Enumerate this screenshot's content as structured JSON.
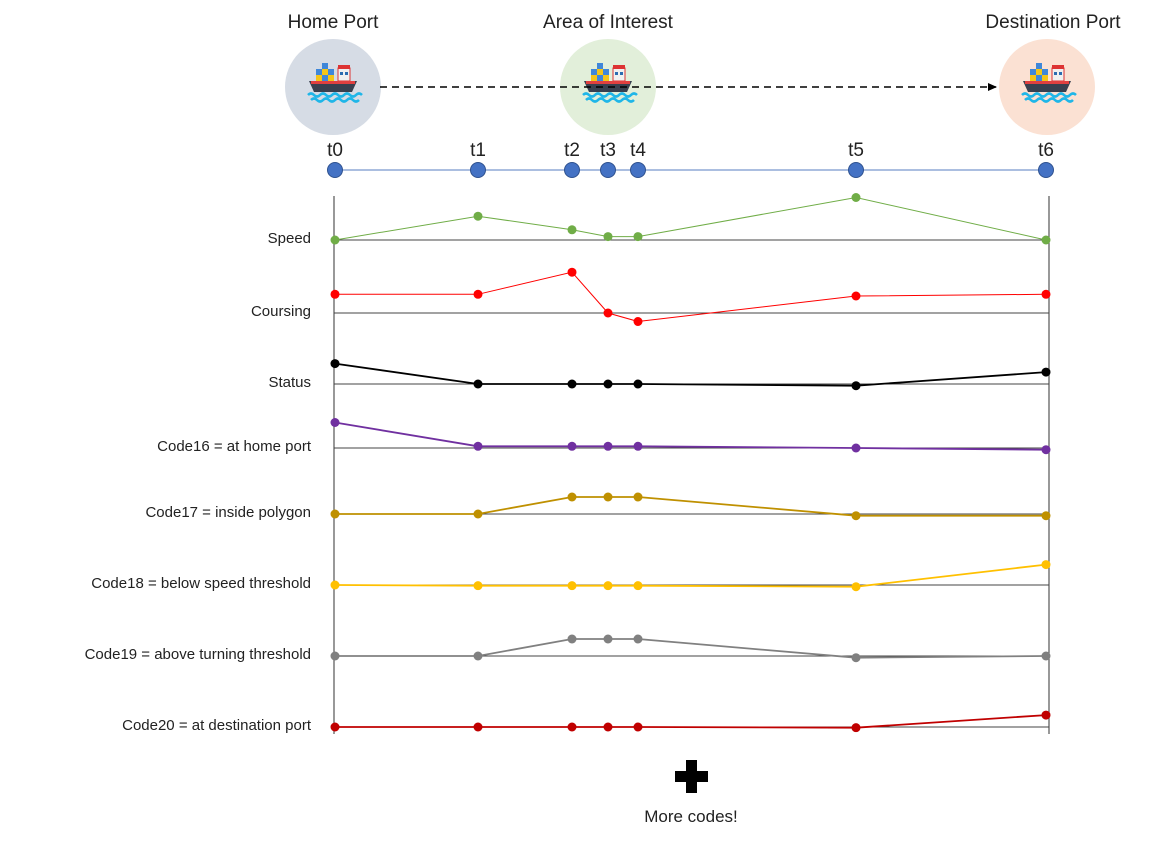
{
  "ports": [
    {
      "label": "Home Port",
      "color": "#d6dce5"
    },
    {
      "label": "Area of Interest",
      "color": "#e2efda"
    },
    {
      "label": "Destination Port",
      "color": "#fbe1d3"
    }
  ],
  "ship_icon": "cargo-ship-icon",
  "timeline": {
    "line_color": "#8fa9d6",
    "node_color": "#4472c4",
    "labels": [
      "t0",
      "t1",
      "t2",
      "t3",
      "t4",
      "t5",
      "t6"
    ]
  },
  "rows": [
    {
      "label": "Speed",
      "color": "#70ad47",
      "values": [
        0.0,
        0.7,
        0.3,
        0.1,
        0.1,
        1.25,
        0.0
      ]
    },
    {
      "label": "Coursing",
      "color": "#ff0000",
      "values": [
        0.55,
        0.55,
        1.2,
        0.0,
        -0.25,
        0.5,
        0.55
      ]
    },
    {
      "label": "Status",
      "color": "#000000",
      "values": [
        0.6,
        0.0,
        0.0,
        0.0,
        0.0,
        -0.05,
        0.35
      ]
    },
    {
      "label": "Code16 = at home port",
      "color": "#7030a0",
      "values": [
        0.75,
        0.05,
        0.05,
        0.05,
        0.05,
        0.0,
        -0.05
      ]
    },
    {
      "label": "Code17 = inside polygon",
      "color": "#bf9000",
      "values": [
        0.0,
        0.0,
        0.5,
        0.5,
        0.5,
        -0.05,
        -0.05
      ]
    },
    {
      "label": "Code18 = below speed threshold",
      "color": "#ffc000",
      "values": [
        0.0,
        -0.02,
        -0.02,
        -0.02,
        -0.02,
        -0.05,
        0.6
      ]
    },
    {
      "label": "Code19 = above turning threshold",
      "color": "#808080",
      "values": [
        0.0,
        0.0,
        0.5,
        0.5,
        0.5,
        -0.05,
        0.0
      ]
    },
    {
      "label": "Code20 = at destination port",
      "color": "#c00000",
      "values": [
        0.0,
        0.0,
        0.0,
        0.0,
        0.0,
        -0.02,
        0.35
      ]
    }
  ],
  "footer": {
    "text": "More codes!",
    "icon": "plus-icon"
  }
}
